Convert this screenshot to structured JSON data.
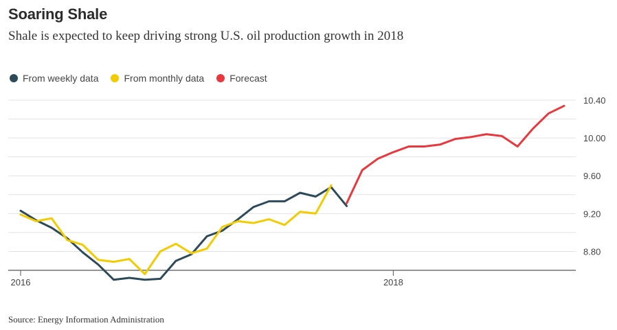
{
  "header": {
    "title": "Soaring Shale",
    "subtitle": "Shale is expected to keep driving strong U.S. oil production growth in 2018"
  },
  "footer": {
    "source": "Source: Energy Information Administration"
  },
  "chart_data": {
    "type": "line",
    "title": "Soaring Shale",
    "subtitle": "Shale is expected to keep driving strong U.S. oil production growth in 2018",
    "xlabel": "",
    "ylabel": "",
    "x_axis": {
      "type": "date",
      "range": [
        "2016-01",
        "2018-12"
      ],
      "ticks": [
        "2016",
        "2018"
      ]
    },
    "y_axis": {
      "range": [
        8.6,
        10.4
      ],
      "ticks": [
        "8.80",
        "9.20",
        "9.60",
        "10.00",
        "10.40"
      ],
      "side": "right",
      "grid": true
    },
    "legend": {
      "placement": "top-left"
    },
    "series": [
      {
        "name": "From weekly data",
        "color": "#2c4a5a",
        "points": [
          [
            "2016-01",
            9.23
          ],
          [
            "2016-02",
            9.13
          ],
          [
            "2016-03",
            9.05
          ],
          [
            "2016-04",
            8.94
          ],
          [
            "2016-05",
            8.79
          ],
          [
            "2016-06",
            8.66
          ],
          [
            "2016-07",
            8.5
          ],
          [
            "2016-08",
            8.52
          ],
          [
            "2016-09",
            8.5
          ],
          [
            "2016-10",
            8.51
          ],
          [
            "2016-11",
            8.7
          ],
          [
            "2016-12",
            8.77
          ],
          [
            "2017-01",
            8.96
          ],
          [
            "2017-02",
            9.02
          ],
          [
            "2017-03",
            9.14
          ],
          [
            "2017-04",
            9.27
          ],
          [
            "2017-05",
            9.33
          ],
          [
            "2017-06",
            9.33
          ],
          [
            "2017-07",
            9.42
          ],
          [
            "2017-08",
            9.38
          ],
          [
            "2017-09",
            9.48
          ],
          [
            "2017-10",
            9.28
          ]
        ]
      },
      {
        "name": "From monthly data",
        "color": "#f2cb00",
        "points": [
          [
            "2016-01",
            9.19
          ],
          [
            "2016-02",
            9.12
          ],
          [
            "2016-03",
            9.15
          ],
          [
            "2016-04",
            8.92
          ],
          [
            "2016-05",
            8.87
          ],
          [
            "2016-06",
            8.71
          ],
          [
            "2016-07",
            8.69
          ],
          [
            "2016-08",
            8.72
          ],
          [
            "2016-09",
            8.56
          ],
          [
            "2016-10",
            8.8
          ],
          [
            "2016-11",
            8.88
          ],
          [
            "2016-12",
            8.78
          ],
          [
            "2017-01",
            8.83
          ],
          [
            "2017-02",
            9.06
          ],
          [
            "2017-03",
            9.12
          ],
          [
            "2017-04",
            9.1
          ],
          [
            "2017-05",
            9.14
          ],
          [
            "2017-06",
            9.08
          ],
          [
            "2017-07",
            9.22
          ],
          [
            "2017-08",
            9.2
          ],
          [
            "2017-09",
            9.5
          ]
        ]
      },
      {
        "name": "Forecast",
        "color": "#e8383d",
        "points": [
          [
            "2017-10",
            9.31
          ],
          [
            "2017-11",
            9.66
          ],
          [
            "2017-12",
            9.78
          ],
          [
            "2018-01",
            9.85
          ],
          [
            "2018-02",
            9.91
          ],
          [
            "2018-03",
            9.91
          ],
          [
            "2018-04",
            9.93
          ],
          [
            "2018-05",
            9.99
          ],
          [
            "2018-06",
            10.01
          ],
          [
            "2018-07",
            10.04
          ],
          [
            "2018-08",
            10.02
          ],
          [
            "2018-09",
            9.91
          ],
          [
            "2018-10",
            10.1
          ],
          [
            "2018-11",
            10.26
          ],
          [
            "2018-12",
            10.34
          ]
        ]
      }
    ]
  }
}
